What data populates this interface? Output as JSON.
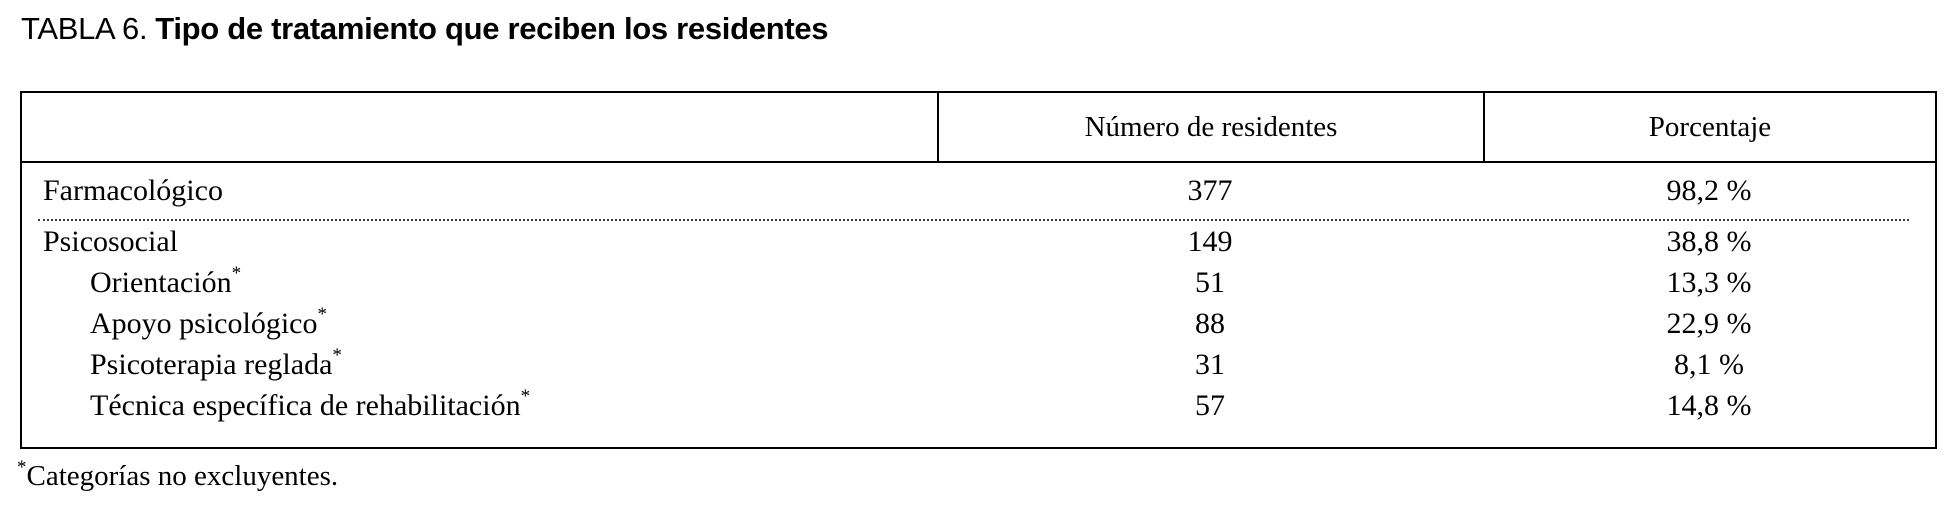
{
  "title": {
    "prefix": "TABLA 6.",
    "text": "Tipo de tratamiento que reciben los residentes"
  },
  "table": {
    "columns": {
      "label": "",
      "residents": "Número de residentes",
      "percentage": "Porcentaje"
    },
    "rows": [
      {
        "label": "Farmacológico",
        "marker": "",
        "residents": "377",
        "percentage": "98,2 %"
      },
      {
        "label": "Psicosocial",
        "marker": "",
        "residents": "149",
        "percentage": "38,8 %"
      },
      {
        "label": "Orientación",
        "marker": "*",
        "residents": "51",
        "percentage": "13,3 %"
      },
      {
        "label": "Apoyo psicológico",
        "marker": "*",
        "residents": "88",
        "percentage": "22,9 %"
      },
      {
        "label": "Psicoterapia reglada",
        "marker": "*",
        "residents": "31",
        "percentage": "8,1 %"
      },
      {
        "label": "Técnica específica de rehabilitación",
        "marker": "*",
        "residents": "57",
        "percentage": "14,8 %"
      }
    ]
  },
  "footnote": {
    "marker": "*",
    "text": "Categorías no excluyentes."
  },
  "colors": {
    "background": "#ffffff",
    "text": "#000000",
    "border": "#000000"
  }
}
